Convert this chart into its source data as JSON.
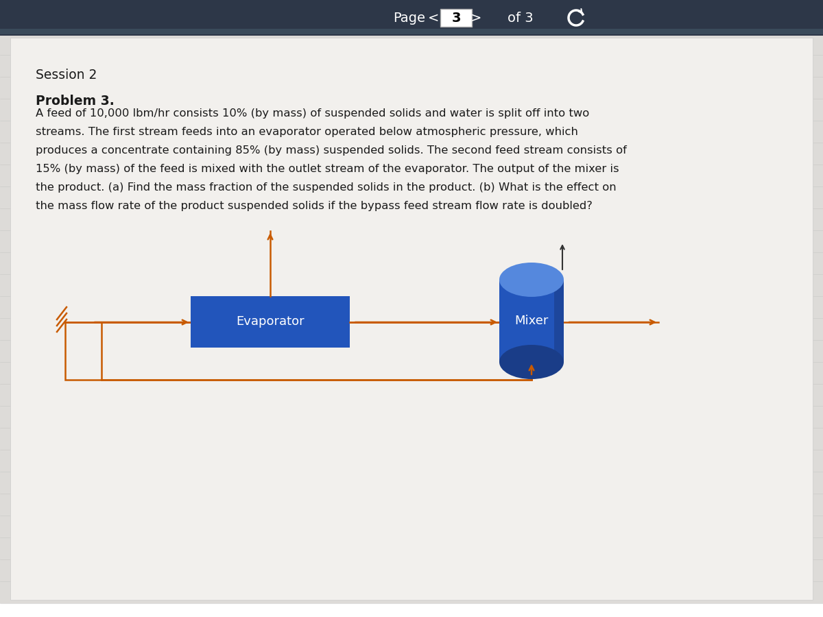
{
  "bg_color_outer": "#b0b0b0",
  "bg_color_top_bar": "#2d3748",
  "bg_color_page": "#e8e8e6",
  "session_label": "Session 2",
  "problem_label": "Problem 3.",
  "problem_text_lines": [
    "A feed of 10,000 lbm/hr consists 10% (by mass) of suspended solids and water is split off into two",
    "streams. The first stream feeds into an evaporator operated below atmospheric pressure, which",
    "produces a concentrate containing 85% (by mass) suspended solids. The second feed stream consists of",
    "15% (by mass) of the feed is mixed with the outlet stream of the evaporator. The output of the mixer is",
    "the product. (a) Find the mass fraction of the suspended solids in the product. (b) What is the effect on",
    "the mass flow rate of the product suspended solids if the bypass feed stream flow rate is doubled?"
  ],
  "evaporator_label": "Evaporator",
  "mixer_label": "Mixer",
  "evap_box_color": "#2255bb",
  "evap_text_color": "#ffffff",
  "mixer_cyl_color_body": "#2255bb",
  "mixer_cyl_color_top": "#5588dd",
  "mixer_cyl_color_shadow": "#1a3d88",
  "arrow_color": "#c85a00",
  "text_color": "#1a1a1a",
  "page_bg_gradient_top": "#d8d8d6",
  "page_bg_gradient_bottom": "#c8c8c6"
}
